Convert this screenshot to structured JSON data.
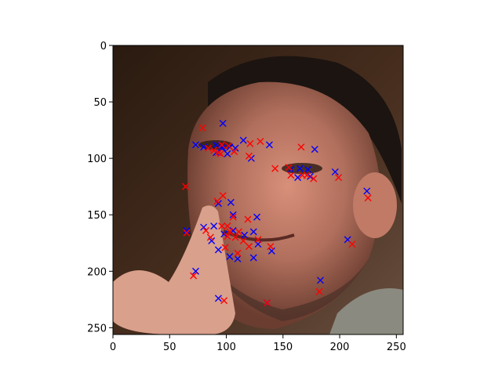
{
  "chart_data": {
    "type": "scatter",
    "title": "",
    "xlabel": "",
    "ylabel": "",
    "xlim": [
      0,
      256
    ],
    "ylim": [
      256,
      0
    ],
    "y_inverted": true,
    "x_ticks": [
      0,
      50,
      100,
      150,
      200,
      250
    ],
    "y_ticks": [
      0,
      50,
      100,
      150,
      200,
      250
    ],
    "grid": false,
    "background": "photo: man's face with a finger raised near lips",
    "colors": {
      "blue": "#0000ff",
      "red": "#ff0000"
    },
    "series": [
      {
        "marker": "x",
        "color": "#0000ff",
        "points": [
          [
            97,
            69
          ],
          [
            73,
            88
          ],
          [
            80,
            90
          ],
          [
            91,
            88
          ],
          [
            97,
            91
          ],
          [
            103,
            90
          ],
          [
            108,
            91
          ],
          [
            115,
            84
          ],
          [
            122,
            100
          ],
          [
            138,
            88
          ],
          [
            163,
            117
          ],
          [
            157,
            110
          ],
          [
            165,
            109
          ],
          [
            174,
            116
          ],
          [
            178,
            92
          ],
          [
            196,
            112
          ],
          [
            65,
            164
          ],
          [
            73,
            200
          ],
          [
            80,
            161
          ],
          [
            87,
            173
          ],
          [
            93,
            181
          ],
          [
            103,
            187
          ],
          [
            110,
            189
          ],
          [
            106,
            164
          ],
          [
            116,
            168
          ],
          [
            124,
            165
          ],
          [
            128,
            176
          ],
          [
            124,
            188
          ],
          [
            140,
            182
          ],
          [
            127,
            152
          ],
          [
            106,
            150
          ],
          [
            98,
            167
          ],
          [
            104,
            139
          ],
          [
            93,
            140
          ],
          [
            89,
            160
          ],
          [
            96,
            91
          ],
          [
            101,
            96
          ],
          [
            183,
            208
          ],
          [
            136,
            228
          ],
          [
            93,
            224
          ],
          [
            207,
            172
          ],
          [
            224,
            129
          ],
          [
            91,
            95
          ],
          [
            172,
            110
          ]
        ]
      },
      {
        "marker": "x",
        "color": "#ff0000",
        "points": [
          [
            79,
            73
          ],
          [
            96,
            88
          ],
          [
            102,
            89
          ],
          [
            95,
            96
          ],
          [
            107,
            94
          ],
          [
            89,
            93
          ],
          [
            121,
            87
          ],
          [
            120,
            98
          ],
          [
            130,
            85
          ],
          [
            143,
            109
          ],
          [
            155,
            108
          ],
          [
            157,
            115
          ],
          [
            166,
            90
          ],
          [
            171,
            115
          ],
          [
            177,
            118
          ],
          [
            199,
            117
          ],
          [
            64,
            125
          ],
          [
            65,
            166
          ],
          [
            71,
            204
          ],
          [
            82,
            164
          ],
          [
            86,
            170
          ],
          [
            96,
            160
          ],
          [
            101,
            160
          ],
          [
            103,
            165
          ],
          [
            108,
            170
          ],
          [
            119,
            154
          ],
          [
            120,
            178
          ],
          [
            110,
            184
          ],
          [
            128,
            172
          ],
          [
            139,
            178
          ],
          [
            106,
            152
          ],
          [
            92,
            138
          ],
          [
            97,
            133
          ],
          [
            99,
            179
          ],
          [
            115,
            173
          ],
          [
            84,
            91
          ],
          [
            93,
            95
          ],
          [
            182,
            218
          ],
          [
            136,
            228
          ],
          [
            98,
            226
          ],
          [
            211,
            176
          ],
          [
            225,
            135
          ],
          [
            167,
            115
          ],
          [
            101,
            169
          ],
          [
            111,
            165
          ]
        ]
      }
    ]
  }
}
